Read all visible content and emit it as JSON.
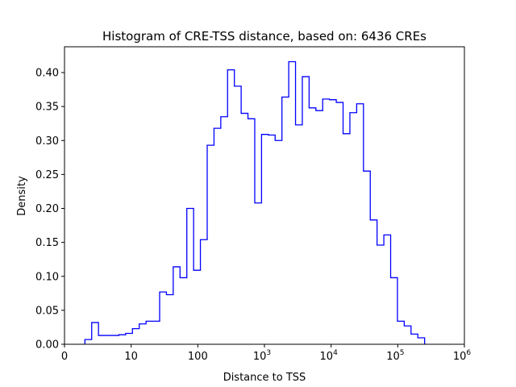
{
  "chart_data": {
    "type": "histogram-step",
    "title": "Histogram of CRE-TSS distance, based on: 6436 CREs",
    "xlabel": "Distance to TSS",
    "ylabel": "Density",
    "xscale": "symlog",
    "xlim": [
      0,
      1000000
    ],
    "ylim": [
      0,
      0.438
    ],
    "x_range_data": [
      3.06,
      253000
    ],
    "xticks": [
      {
        "base": "0",
        "exp": ""
      },
      {
        "base": "10",
        "exp": ""
      },
      {
        "base": "100",
        "exp": ""
      },
      {
        "base": "10",
        "exp": "3"
      },
      {
        "base": "10",
        "exp": "4"
      },
      {
        "base": "10",
        "exp": "5"
      },
      {
        "base": "10",
        "exp": "6"
      }
    ],
    "yticks": [
      "0.00",
      "0.05",
      "0.10",
      "0.15",
      "0.20",
      "0.25",
      "0.30",
      "0.35",
      "0.40"
    ],
    "color": "#0000ff",
    "densities": [
      0.007,
      0.032,
      0.013,
      0.013,
      0.013,
      0.014,
      0.016,
      0.023,
      0.03,
      0.034,
      0.034,
      0.077,
      0.073,
      0.114,
      0.098,
      0.2,
      0.109,
      0.154,
      0.293,
      0.318,
      0.335,
      0.404,
      0.38,
      0.34,
      0.332,
      0.208,
      0.309,
      0.308,
      0.3,
      0.364,
      0.416,
      0.323,
      0.394,
      0.348,
      0.344,
      0.361,
      0.36,
      0.356,
      0.31,
      0.341,
      0.354,
      0.255,
      0.183,
      0.146,
      0.161,
      0.098,
      0.034,
      0.027,
      0.015,
      0.0095
    ]
  }
}
